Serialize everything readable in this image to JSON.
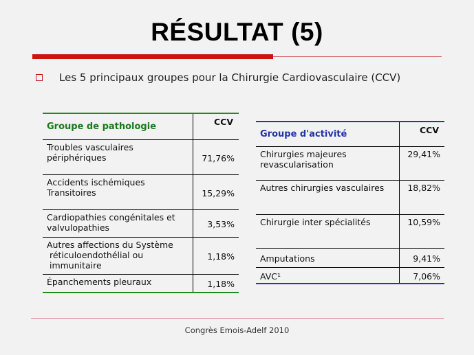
{
  "title": "RÉSULTAT (5)",
  "bullet": "Les 5 principaux groupes pour la Chirurgie Cardiovasculaire (CCV)",
  "left_table": {
    "header": "Groupe de pathologie",
    "ccv_label": "CCV",
    "rows": [
      {
        "label_lines": [
          "Troubles vasculaires",
          "périphériques"
        ],
        "value": "71,76%"
      },
      {
        "label_lines": [
          "Accidents ischémiques",
          "Transitoires"
        ],
        "value": "15,29%"
      },
      {
        "label_lines": [
          "Cardiopathies congénitales et",
          "valvulopathies"
        ],
        "value": "3,53%"
      },
      {
        "label_lines": [
          "Autres affections du Système",
          " réticuloendothélial ou",
          " immunitaire"
        ],
        "value": "1,18%"
      },
      {
        "label_lines": [
          "Épanchements pleuraux"
        ],
        "value": "1,18%"
      }
    ]
  },
  "right_table": {
    "header": "Groupe d'activité",
    "ccv_label": "CCV",
    "rows": [
      {
        "label_lines": [
          "Chirurgies majeures",
          "revascularisation"
        ],
        "value": "29,41%"
      },
      {
        "label_lines": [
          "Autres chirurgies vasculaires"
        ],
        "value": "18,82%"
      },
      {
        "label_lines": [
          "Chirurgie inter spécialités"
        ],
        "value": "10,59%"
      },
      {
        "label_lines": [
          "Amputations"
        ],
        "value": "9,41%"
      },
      {
        "label_lines": [
          "AVC¹"
        ],
        "value": "7,06%"
      }
    ]
  },
  "footer": "Congrès Emois-Adelf 2010"
}
